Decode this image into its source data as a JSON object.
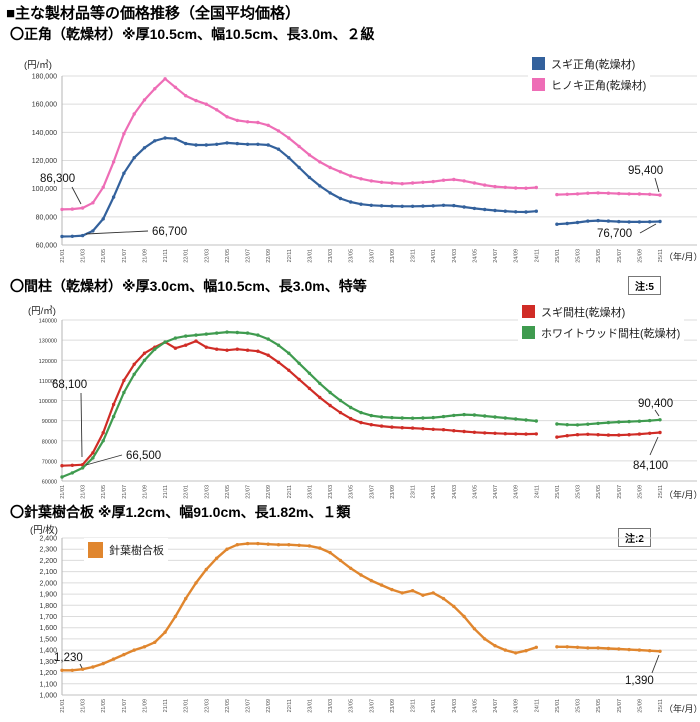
{
  "page": {
    "title": "■主な製材品等の価格推移（全国平均価格）"
  },
  "months": [
    "21/01",
    "21/02",
    "21/03",
    "21/04",
    "21/05",
    "21/06",
    "21/07",
    "21/08",
    "21/09",
    "21/10",
    "21/11",
    "21/12",
    "22/01",
    "22/02",
    "22/03",
    "22/04",
    "22/05",
    "22/06",
    "22/07",
    "22/08",
    "22/09",
    "22/10",
    "22/11",
    "22/12",
    "23/01",
    "23/02",
    "23/03",
    "23/04",
    "23/05",
    "23/06",
    "23/07",
    "23/08",
    "23/09",
    "23/10",
    "23/11",
    "23/12",
    "24/01",
    "24/02",
    "24/03",
    "24/04",
    "24/05",
    "24/06",
    "24/07",
    "24/08",
    "24/09",
    "24/10",
    "24/11",
    "24/12",
    "25/01",
    "25/02",
    "25/03",
    "25/04",
    "25/05",
    "25/06",
    "25/07",
    "25/08",
    "25/09",
    "25/10",
    "25/11"
  ],
  "chart_data": [
    {
      "type": "line",
      "id": "shokaku",
      "title": "〇正角（乾燥材）※厚10.5cm、幅10.5cm、長3.0m、２級",
      "note": null,
      "y_unit": "(円/㎥)",
      "x_unit": "（年/月）",
      "y_min": 60000,
      "y_max": 180000,
      "y_step": 20000,
      "y_tick_comma": true,
      "grid": true,
      "legend_position": "top-right",
      "x_label_every": 2,
      "series": [
        {
          "id": "sugi-shokaku",
          "name": "スギ正角(乾燥材)",
          "color": "#33619c",
          "values": [
            66000,
            66200,
            66700,
            70000,
            78500,
            94000,
            111000,
            122000,
            129000,
            134000,
            136000,
            135500,
            132000,
            131000,
            131000,
            131500,
            132500,
            132000,
            131500,
            131500,
            131000,
            128000,
            122000,
            115000,
            108000,
            102000,
            97000,
            93000,
            90500,
            89000,
            88200,
            87800,
            87600,
            87500,
            87500,
            87600,
            87800,
            88200,
            88000,
            87000,
            86000,
            85200,
            84500,
            84000,
            83600,
            83400,
            84000,
            null,
            74800,
            75300,
            76000,
            77000,
            77300,
            77000,
            76600,
            76400,
            76400,
            76500,
            76700
          ]
        },
        {
          "id": "hinoki-shokaku",
          "name": "ヒノキ正角(乾燥材)",
          "color": "#ee6db6",
          "values": [
            85300,
            85500,
            86300,
            90000,
            101000,
            119000,
            139000,
            153000,
            163000,
            171000,
            178000,
            172000,
            166000,
            162500,
            160000,
            156000,
            151000,
            148500,
            147500,
            147000,
            145000,
            141000,
            136000,
            130000,
            124000,
            119000,
            115000,
            112000,
            109000,
            107000,
            105500,
            104500,
            104000,
            103500,
            104000,
            104500,
            105000,
            106000,
            106500,
            105500,
            104000,
            102500,
            101500,
            101000,
            100500,
            100300,
            100800,
            null,
            95800,
            96000,
            96300,
            96800,
            97000,
            96800,
            96500,
            96300,
            96200,
            96000,
            95400
          ]
        }
      ],
      "annotations": [
        {
          "id": "hinoki-start",
          "month": "21/03",
          "value": 86300,
          "label": "86,300"
        },
        {
          "id": "sugi-start",
          "month": "21/03",
          "value": 66700,
          "label": "66,700"
        },
        {
          "id": "hinoki-end",
          "month": "25/11",
          "value": 95400,
          "label": "95,400"
        },
        {
          "id": "sugi-end",
          "month": "25/11",
          "value": 76700,
          "label": "76,700"
        }
      ]
    },
    {
      "type": "line",
      "id": "mabashira",
      "title": "〇間柱（乾燥材）※厚3.0cm、幅10.5cm、長3.0m、特等",
      "note": "注:5",
      "y_unit": "(円/㎥)",
      "x_unit": "（年/月）",
      "y_min": 60000,
      "y_max": 140000,
      "y_step": 10000,
      "y_tick_comma": false,
      "grid": true,
      "legend_position": "top-right",
      "x_label_every": 2,
      "series": [
        {
          "id": "sugi-mabashira",
          "name": "スギ間柱(乾燥材)",
          "color": "#d02c26",
          "values": [
            67600,
            67800,
            68100,
            74000,
            84000,
            98000,
            110000,
            118000,
            123500,
            126500,
            129000,
            126000,
            127500,
            129500,
            126500,
            125500,
            125000,
            125500,
            125000,
            124500,
            122500,
            119000,
            115000,
            110500,
            106000,
            101500,
            97500,
            94000,
            91000,
            89000,
            88000,
            87300,
            86800,
            86500,
            86300,
            86000,
            85700,
            85500,
            85000,
            84600,
            84200,
            83900,
            83700,
            83500,
            83400,
            83300,
            83400,
            null,
            81800,
            82500,
            83000,
            83200,
            83000,
            82800,
            82800,
            83000,
            83300,
            83700,
            84100
          ]
        },
        {
          "id": "whitewood-mabashira",
          "name": "ホワイトウッド間柱(乾燥材)",
          "color": "#3f9b4f",
          "values": [
            62000,
            64000,
            66500,
            71500,
            80000,
            92000,
            104000,
            113000,
            120000,
            125500,
            129000,
            131000,
            132000,
            132500,
            133000,
            133500,
            134000,
            133800,
            133500,
            132500,
            130500,
            127500,
            123500,
            118500,
            113500,
            108500,
            104000,
            100000,
            96500,
            94000,
            92500,
            91800,
            91500,
            91300,
            91200,
            91300,
            91500,
            92000,
            92600,
            93000,
            92800,
            92300,
            91800,
            91300,
            90800,
            90300,
            89800,
            null,
            88300,
            88000,
            87900,
            88200,
            88600,
            89000,
            89300,
            89500,
            89700,
            90000,
            90400
          ]
        }
      ],
      "annotations": [
        {
          "id": "sugi-start",
          "month": "21/03",
          "value": 68100,
          "label": "68,100"
        },
        {
          "id": "ww-start",
          "month": "21/03",
          "value": 66500,
          "label": "66,500"
        },
        {
          "id": "ww-end",
          "month": "25/11",
          "value": 90400,
          "label": "90,400"
        },
        {
          "id": "sugi-end",
          "month": "25/11",
          "value": 84100,
          "label": "84,100"
        }
      ]
    },
    {
      "type": "line",
      "id": "gouhan",
      "title": "〇針葉樹合板 ※厚1.2cm、幅91.0cm、長1.82m、１類",
      "note": "注:2",
      "y_unit": "(円/枚)",
      "x_unit": "（年/月）",
      "y_min": 1000,
      "y_max": 2400,
      "y_step": 100,
      "y_tick_comma": true,
      "grid": true,
      "legend_position": "top-left-inside",
      "x_label_every": 2,
      "series": [
        {
          "id": "gouhan",
          "name": "針葉樹合板",
          "color": "#e0862e",
          "values": [
            1220,
            1220,
            1230,
            1250,
            1280,
            1320,
            1360,
            1400,
            1430,
            1470,
            1560,
            1700,
            1860,
            2000,
            2120,
            2220,
            2300,
            2340,
            2350,
            2350,
            2345,
            2340,
            2340,
            2335,
            2330,
            2310,
            2270,
            2200,
            2130,
            2070,
            2020,
            1980,
            1940,
            1910,
            1930,
            1890,
            1910,
            1860,
            1790,
            1700,
            1590,
            1500,
            1440,
            1400,
            1375,
            1395,
            1425,
            null,
            1430,
            1430,
            1425,
            1420,
            1420,
            1415,
            1410,
            1405,
            1400,
            1395,
            1390
          ]
        }
      ],
      "annotations": [
        {
          "id": "start",
          "month": "21/03",
          "value": 1230,
          "label": "1,230"
        },
        {
          "id": "end",
          "month": "25/11",
          "value": 1390,
          "label": "1,390"
        }
      ]
    }
  ]
}
